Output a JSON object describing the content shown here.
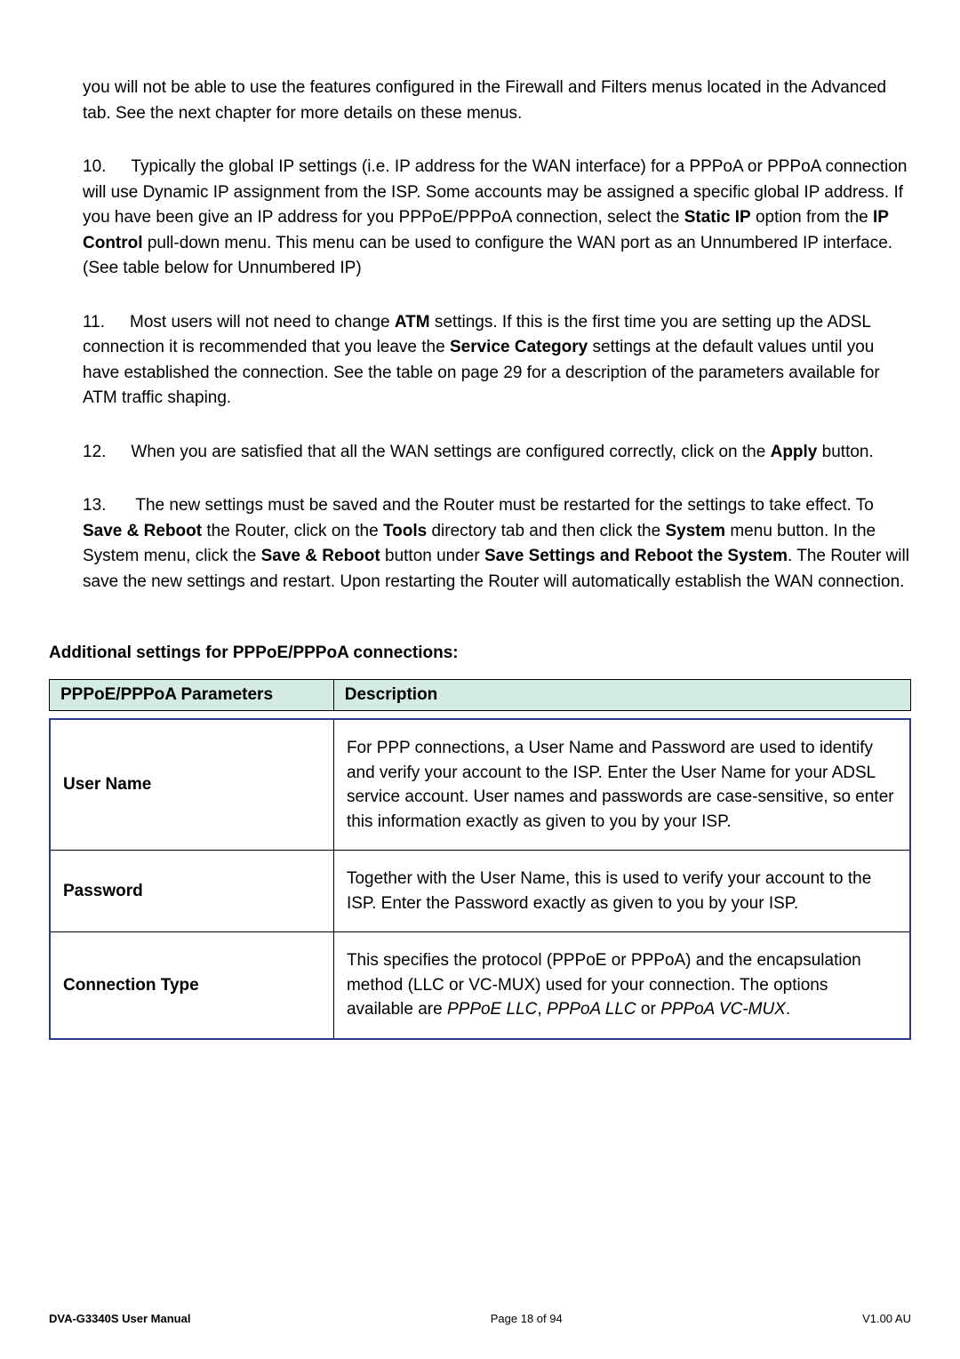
{
  "intro_text": "you will not be able to use the features configured in the Firewall and Filters menus located in the Advanced tab. See the next chapter for more details on these menus.",
  "items": [
    {
      "number": "10.",
      "text_before_bold1": "Typically the global IP settings (i.e. IP address for the WAN interface) for a PPPoA or PPPoA connection will use Dynamic IP assignment from the ISP. Some accounts may be assigned a specific global IP address. If you have been give an IP address for you PPPoE/PPPoA connection, select the ",
      "bold1": "Static IP",
      "text_mid1": " option from the ",
      "bold2": "IP Control",
      "text_after": " pull-down menu. This menu can be used to configure the WAN port as an Unnumbered IP interface. (See table below for Unnumbered IP)"
    },
    {
      "number": "11.",
      "text_before_bold1": "Most users will not need to change ",
      "bold1": "ATM",
      "text_mid1": " settings. If this is the first time you are setting up the ADSL connection it is recommended that you leave the ",
      "bold2": "Service Category",
      "text_after": " settings at the default values until you have established the connection. See the table on page 29 for a description of the parameters available for ATM traffic shaping."
    },
    {
      "number": "12.",
      "text_before_bold1": "When you are satisfied that all the WAN settings are configured correctly, click on the ",
      "bold1": "Apply",
      "text_after": " button."
    },
    {
      "number": "13.",
      "parts": [
        {
          "type": "text",
          "value": "The new settings must be saved and the Router must be restarted for the settings to take effect. To "
        },
        {
          "type": "bold",
          "value": "Save & Reboot"
        },
        {
          "type": "text",
          "value": " the Router, click on the "
        },
        {
          "type": "bold",
          "value": "Tools"
        },
        {
          "type": "text",
          "value": " directory tab and then click the "
        },
        {
          "type": "bold",
          "value": "System"
        },
        {
          "type": "text",
          "value": " menu button. In the System menu, click the "
        },
        {
          "type": "bold",
          "value": "Save & Reboot"
        },
        {
          "type": "text",
          "value": " button under "
        },
        {
          "type": "bold",
          "value": "Save Settings and Reboot the System"
        },
        {
          "type": "text",
          "value": ". The Router will save the new settings and restart. Upon restarting the Router will automatically establish the WAN connection."
        }
      ]
    }
  ],
  "section_heading": "Additional settings for PPPoE/PPPoA connections:",
  "table_headers": {
    "col1": "PPPoE/PPPoA Parameters",
    "col2": "Description"
  },
  "table_rows": [
    {
      "param": "User Name",
      "desc": "For PPP connections, a User Name and Password are used to identify and verify your account to the ISP. Enter the User Name for your ADSL service account. User names and passwords are case-sensitive, so enter this information exactly as given to you by your ISP."
    },
    {
      "param": "Password",
      "desc": "Together with the User Name, this is used to verify your account to the ISP. Enter the Password exactly as given to you by your ISP."
    },
    {
      "param": "Connection Type",
      "desc_parts": [
        {
          "type": "text",
          "value": "This specifies the protocol (PPPoE or PPPoA) and the encapsulation method (LLC or VC-MUX) used for your connection. The options available are "
        },
        {
          "type": "italic",
          "value": "PPPoE LLC"
        },
        {
          "type": "text",
          "value": ", "
        },
        {
          "type": "italic",
          "value": "PPPoA LLC"
        },
        {
          "type": "text",
          "value": " or "
        },
        {
          "type": "italic",
          "value": "PPPoA VC-MUX"
        },
        {
          "type": "text",
          "value": "."
        }
      ]
    }
  ],
  "footer": {
    "left": "DVA-G3340S User Manual",
    "center": "Page 18 of 94",
    "right": "V1.00 AU"
  }
}
